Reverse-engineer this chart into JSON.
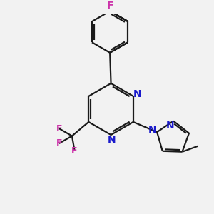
{
  "background_color": "#f2f2f2",
  "bond_color": "#1a1a1a",
  "nitrogen_color": "#1a1acc",
  "fluorine_color": "#cc33aa",
  "line_width": 1.6,
  "figsize": [
    3.0,
    3.0
  ],
  "dpi": 100,
  "xlim": [
    0,
    10
  ],
  "ylim": [
    0,
    10
  ]
}
